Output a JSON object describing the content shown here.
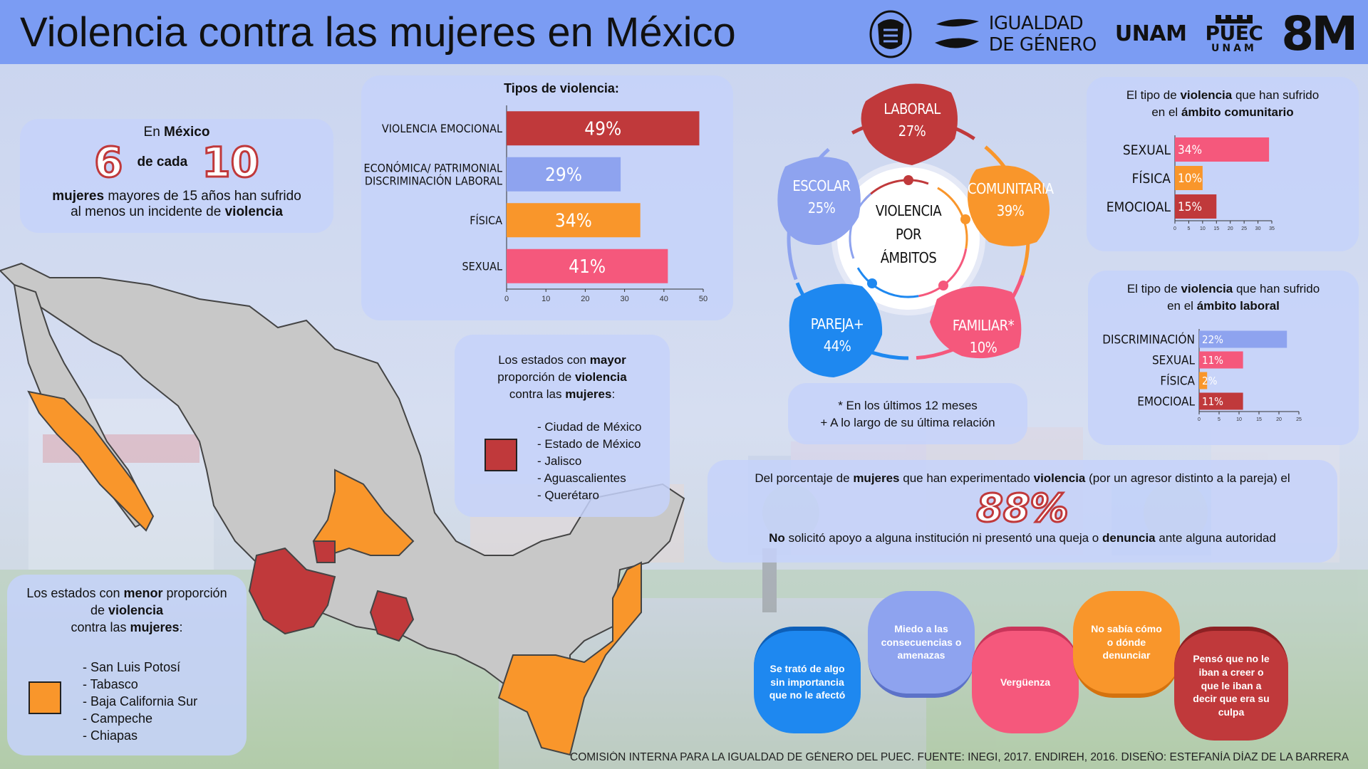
{
  "header": {
    "title": "Violencia contra las mujeres en México",
    "logos": {
      "genero_top": "IGUALDAD",
      "genero_bottom": "DE GÉNERO",
      "unam": "UNAM",
      "puec": "PUEC",
      "puec_unam": "UNAM",
      "eight_m": "8M"
    }
  },
  "stat_box": {
    "line1_pre": "En",
    "line1_bold": "México",
    "big_a": "6",
    "mid": "de cada",
    "big_b": "10",
    "line3_bold": "mujeres",
    "line3_rest": " mayores de 15 años han sufrido",
    "line4_pre": "al menos un incidente de",
    "line4_bold": "violencia"
  },
  "chart_data": [
    {
      "type": "bar",
      "orientation": "horizontal",
      "title": "Tipos de violencia:",
      "categories": [
        "VIOLENCIA EMOCIONAL",
        "ECONÓMICA/ PATRIMONIAL DISCRIMINACIÓN LABORAL",
        "FÍSICA",
        "SEXUAL"
      ],
      "category_lines": [
        [
          "VIOLENCIA EMOCIONAL"
        ],
        [
          "ECONÓMICA/ PATRIMONIAL",
          "DISCRIMINACIÓN LABORAL"
        ],
        [
          "FÍSICA"
        ],
        [
          "SEXUAL"
        ]
      ],
      "values": [
        49,
        29,
        34,
        41
      ],
      "labels": [
        "49%",
        "29%",
        "34%",
        "41%"
      ],
      "colors": [
        "#c0393b",
        "#8ea3ef",
        "#f9962b",
        "#f5587c"
      ],
      "xticks": [
        0,
        10,
        20,
        30,
        40,
        50
      ],
      "xlim": [
        0,
        50
      ]
    },
    {
      "type": "bar",
      "orientation": "horizontal",
      "title": "El tipo de violencia que han sufrido en el ámbito comunitario",
      "categories": [
        "SEXUAL",
        "FÍSICA",
        "EMOCIOAL"
      ],
      "values": [
        34,
        10,
        15
      ],
      "labels": [
        "34%",
        "10%",
        "15%"
      ],
      "colors": [
        "#f5587c",
        "#f9962b",
        "#c0393b"
      ],
      "xticks": [
        0,
        5,
        10,
        15,
        20,
        25,
        30,
        35
      ],
      "xlim": [
        0,
        35
      ]
    },
    {
      "type": "bar",
      "orientation": "horizontal",
      "title": "El tipo de violencia que han sufrido en el ámbito laboral",
      "categories": [
        "DISCRIMINACIÓN",
        "SEXUAL",
        "FÍSICA",
        "EMOCIOAL"
      ],
      "values": [
        22,
        11,
        2,
        11
      ],
      "labels": [
        "22%",
        "11%",
        "2%",
        "11%"
      ],
      "colors": [
        "#8ea3ef",
        "#f5587c",
        "#f9962b",
        "#c0393b"
      ],
      "xticks": [
        0,
        5,
        10,
        15,
        20,
        25
      ],
      "xlim": [
        0,
        25
      ]
    }
  ],
  "tipos_chart": {
    "title": "Tipos de violencia:"
  },
  "comunitario": {
    "pre": "El tipo de",
    "bold1": "violencia",
    "mid": "que han sufrido",
    "pre2": "en el",
    "bold2": "ámbito comunitario"
  },
  "laboral_box": {
    "pre": "El tipo de",
    "bold1": "violencia",
    "mid": "que han sufrido",
    "pre2": "en el",
    "bold2": "ámbito laboral"
  },
  "ambitos": {
    "center": [
      "VIOLENCIA",
      "POR",
      "ÁMBITOS"
    ],
    "items": [
      {
        "name": "LABORAL",
        "value": "27%",
        "color": "#c0393b"
      },
      {
        "name": "COMUNITARIA",
        "value": "39%",
        "color": "#f9962b"
      },
      {
        "name": "FAMILIAR*",
        "value": "10%",
        "color": "#f5587c"
      },
      {
        "name": "PAREJA+",
        "value": "44%",
        "color": "#1e88f0"
      },
      {
        "name": "ESCOLAR",
        "value": "25%",
        "color": "#8ea3ef"
      }
    ],
    "note1": "* En los últimos 12 meses",
    "note2": "+ A lo largo de su última relación"
  },
  "mayor": {
    "l1_pre": "Los estados con",
    "l1_bold": "mayor",
    "l2_pre": "proporción de",
    "l2_bold": "violencia",
    "l3_pre": "contra las",
    "l3_bold": "mujeres",
    "l3_post": ":",
    "color": "#c0393b",
    "states": [
      "- Ciudad de México",
      "- Estado de México",
      "- Jalisco",
      "- Aguascalientes",
      "- Querétaro"
    ]
  },
  "menor": {
    "l1_pre": "Los estados con",
    "l1_bold": "menor",
    "l1_post": "proporción",
    "l2_pre": "de",
    "l2_bold": "violencia",
    "l3_pre": "contra las",
    "l3_bold": "mujeres",
    "l3_post": ":",
    "color": "#f9962b",
    "states": [
      "- San Luis Potosí",
      "- Tabasco",
      "- Baja California Sur",
      "- Campeche",
      "- Chiapas"
    ]
  },
  "agresor": {
    "l1_pre": "Del porcentaje de",
    "l1_b1": "mujeres",
    "l1_mid": "que han experimentado",
    "l1_b2": "violencia",
    "l1_post": "(por un agresor distinto a la pareja) el",
    "big": "88%",
    "l3_b1": "No",
    "l3_mid": "solicitó apoyo a alguna institución ni presentó una queja o",
    "l3_b2": "denuncia",
    "l3_post": "ante alguna autoridad"
  },
  "reasons": [
    {
      "text": "Se trató de algo sin importancia que no le afectó",
      "color": "#1e88f0"
    },
    {
      "text": "Miedo a las consecuencias o amenazas",
      "color": "#8ea3ef"
    },
    {
      "text": "Vergüenza",
      "color": "#f5587c"
    },
    {
      "text": "No sabía cómo o dónde denunciar",
      "color": "#f9962b"
    },
    {
      "text": "Pensó que no le iban a creer o que le iban a decir que era su culpa",
      "color": "#c0393b"
    }
  ],
  "footer": "COMISIÓN INTERNA PARA LA IGUALDAD DE GÉNERO DEL PUEC. FUENTE: INEGI, 2017. ENDIREH, 2016.  DISEÑO: ESTEFANÍA DÍAZ DE LA BARRERA"
}
